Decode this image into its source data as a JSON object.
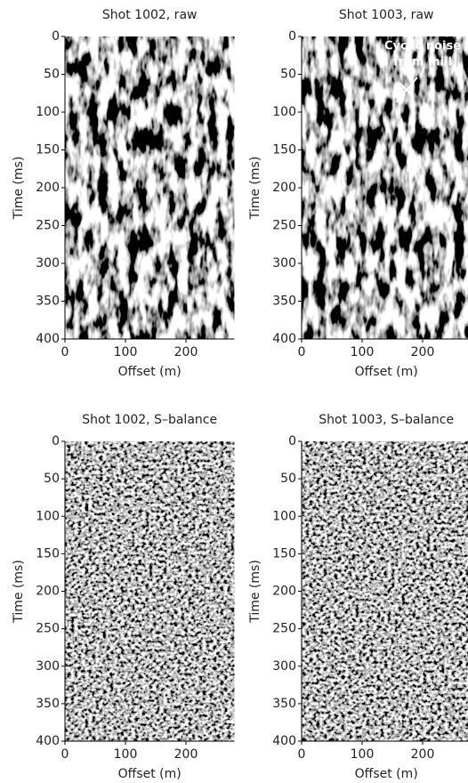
{
  "chart_data": [
    {
      "type": "image",
      "title": "Shot 1002, raw",
      "xlabel": "Offset (m)",
      "ylabel": "Time (ms)",
      "xlim": [
        0,
        280
      ],
      "ylim": [
        400,
        0
      ],
      "xticks": [
        0,
        100,
        200
      ],
      "yticks": [
        0,
        50,
        100,
        150,
        200,
        250,
        300,
        350,
        400
      ]
    },
    {
      "type": "image",
      "title": "Shot 1003, raw",
      "xlabel": "Offset (m)",
      "ylabel": "Time (ms)",
      "xlim": [
        0,
        280
      ],
      "ylim": [
        400,
        0
      ],
      "xticks": [
        0,
        100,
        200
      ],
      "yticks": [
        0,
        50,
        100,
        150,
        200,
        250,
        300,
        350,
        400
      ],
      "annotation": [
        "Cyclic noise",
        "from mill"
      ]
    },
    {
      "type": "image",
      "title": "Shot 1002, S–balance",
      "xlabel": "Offset (m)",
      "ylabel": "Time (ms)",
      "xlim": [
        0,
        280
      ],
      "ylim": [
        400,
        0
      ],
      "xticks": [
        0,
        100,
        200
      ],
      "yticks": [
        0,
        50,
        100,
        150,
        200,
        250,
        300,
        350,
        400
      ]
    },
    {
      "type": "image",
      "title": "Shot 1003, S–balance",
      "xlabel": "Offset (m)",
      "ylabel": "Time (ms)",
      "xlim": [
        0,
        280
      ],
      "ylim": [
        400,
        0
      ],
      "xticks": [
        0,
        100,
        200
      ],
      "yticks": [
        0,
        50,
        100,
        150,
        200,
        250,
        300,
        350,
        400
      ]
    }
  ]
}
